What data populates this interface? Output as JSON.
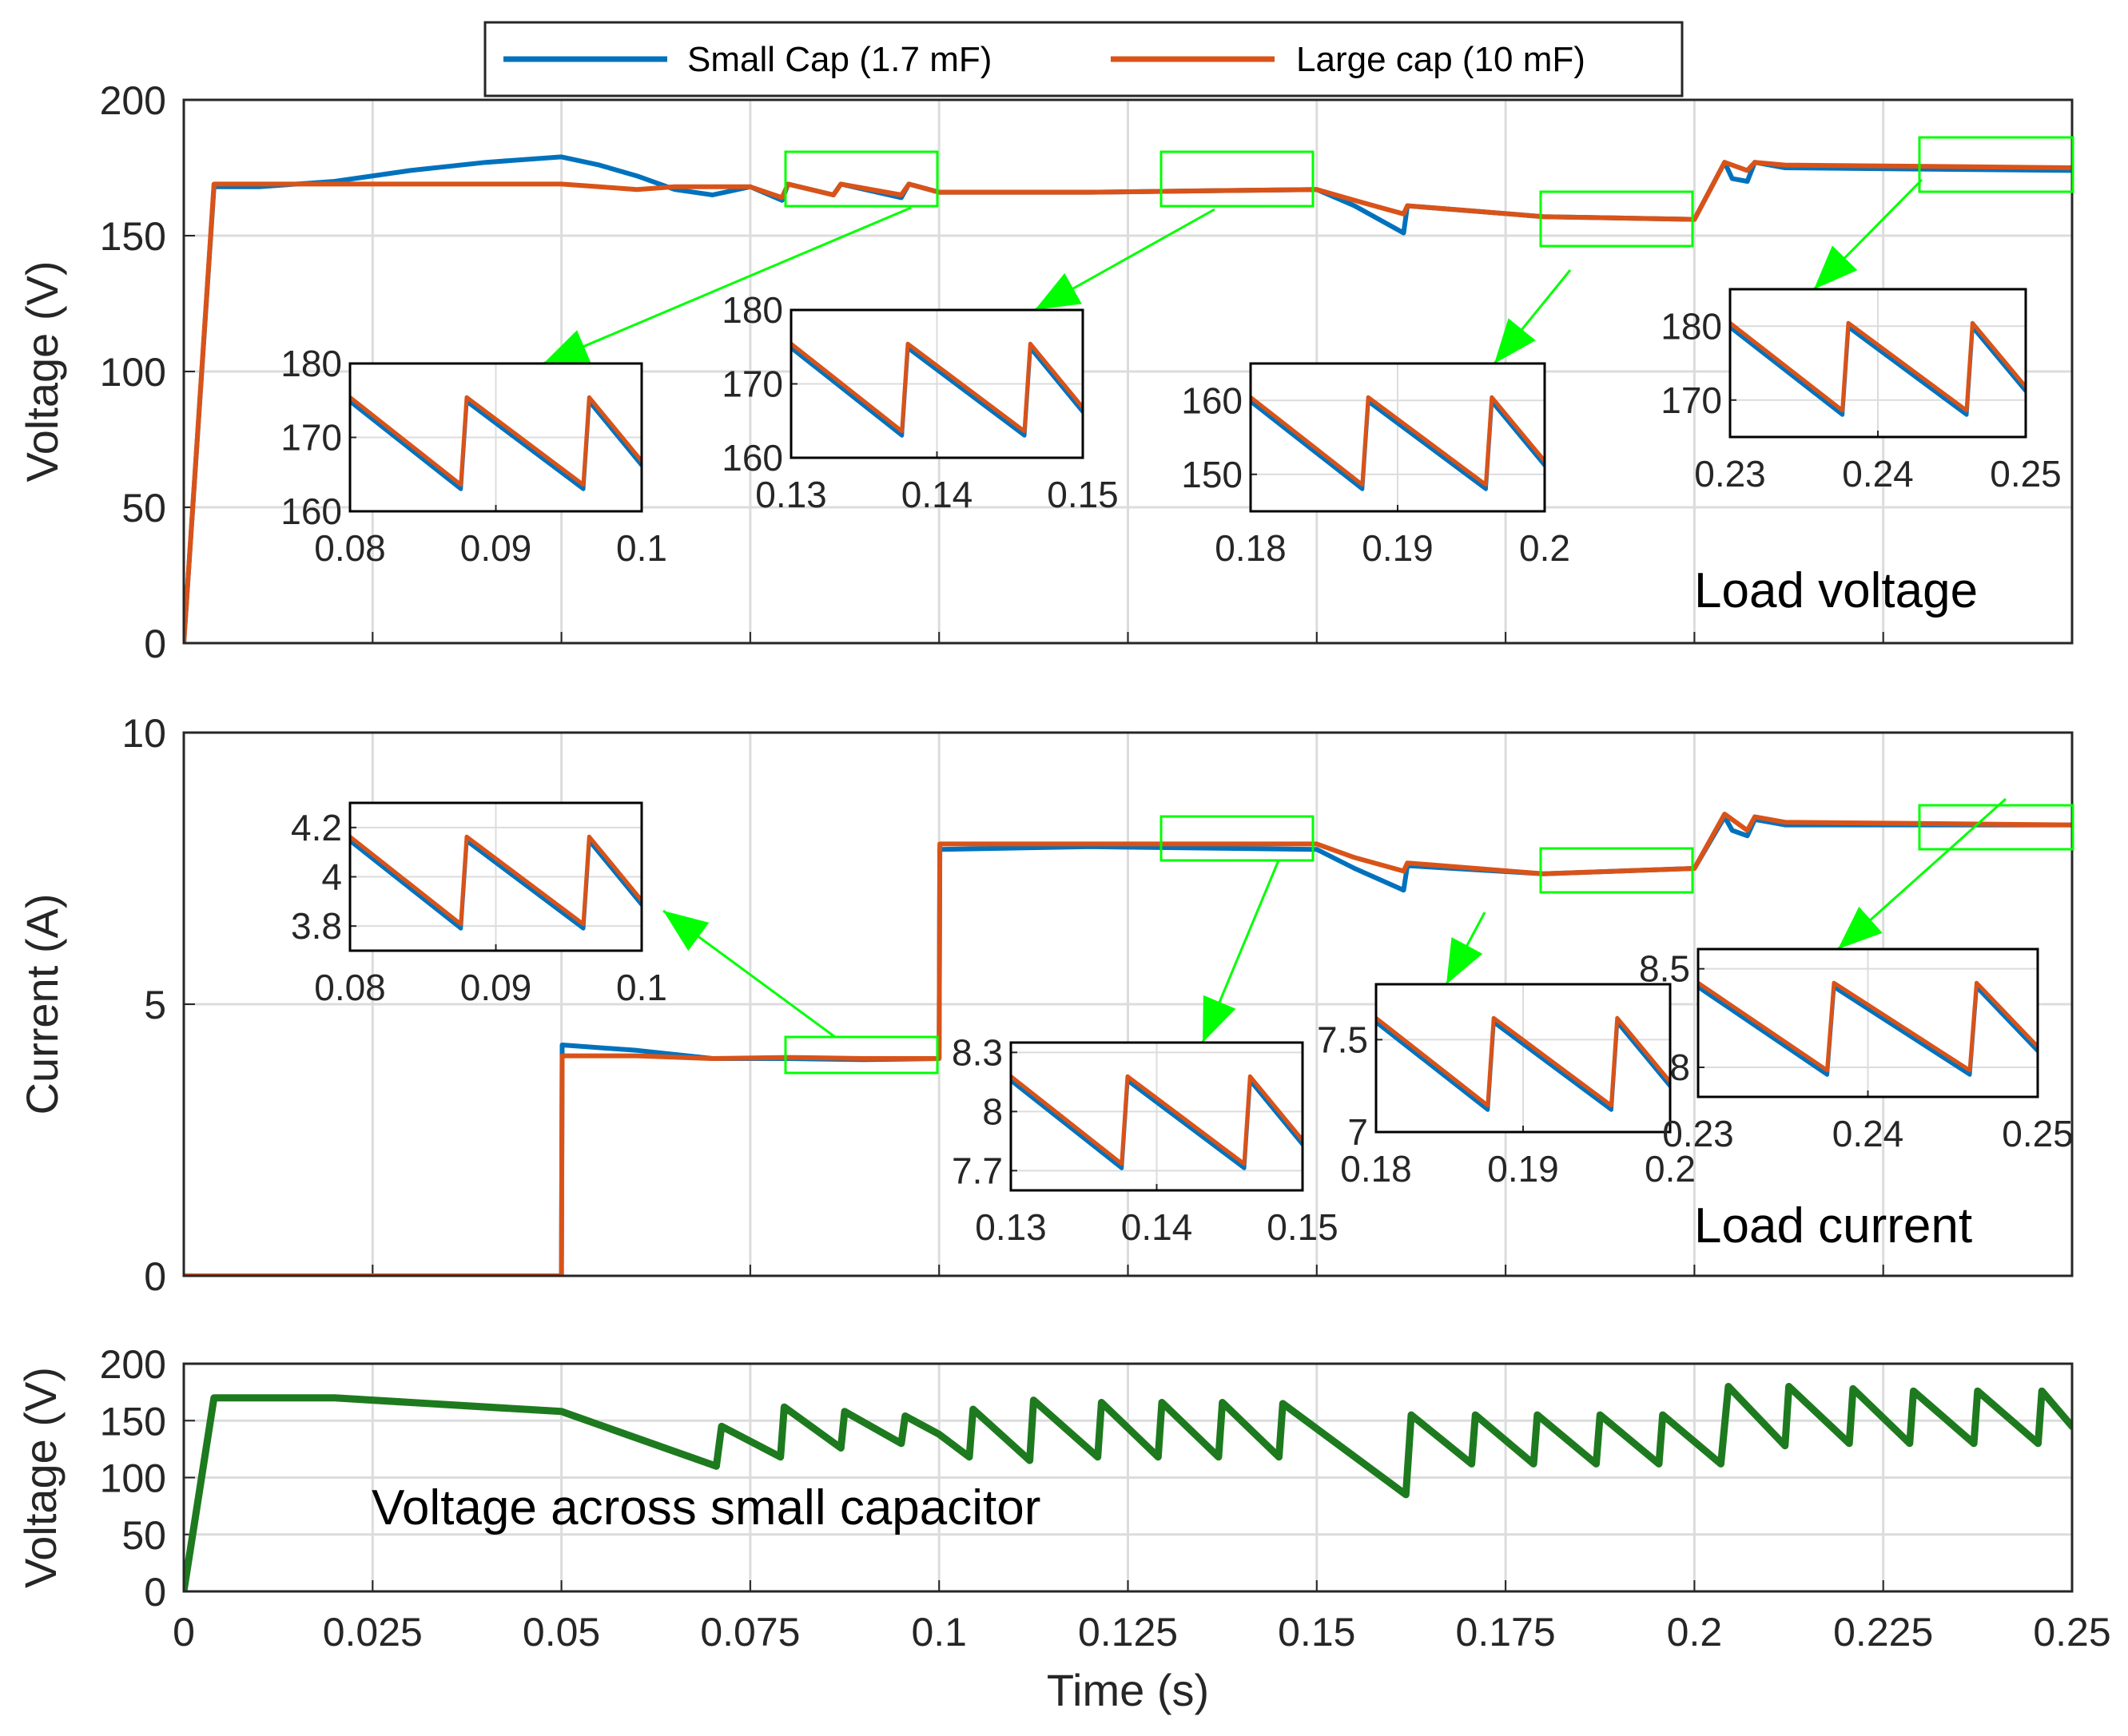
{
  "colors": {
    "small_cap": "#0072BD",
    "large_cap": "#D95319",
    "cap_voltage": "#1E7A1E",
    "zoom_box": "#00FF00",
    "grid": "#DCDCDC",
    "axis": "#262626"
  },
  "chart_data": [
    {
      "type": "line",
      "id": "load_voltage",
      "title": "",
      "annotation": "Load voltage",
      "xlabel": "",
      "ylabel": "Voltage (V)",
      "xlim": [
        0,
        0.25
      ],
      "ylim": [
        0,
        200
      ],
      "xticks": [
        "0",
        "0.025",
        "0.05",
        "0.075",
        "0.1",
        "0.125",
        "0.15",
        "0.175",
        "0.2",
        "0.225",
        "0.25"
      ],
      "yticks": [
        "0",
        "50",
        "100",
        "150",
        "200"
      ],
      "legend": {
        "placement": "top-center",
        "entries": [
          "Small Cap (1.7 mF)",
          "Large cap (10 mF)"
        ]
      },
      "series": [
        {
          "name": "Small Cap (1.7 mF)",
          "x": [
            0,
            0.004,
            0.01,
            0.02,
            0.03,
            0.04,
            0.05,
            0.055,
            0.06,
            0.065,
            0.07,
            0.075,
            0.0792,
            0.08,
            0.086,
            0.087,
            0.095,
            0.096,
            0.1,
            0.12,
            0.15,
            0.155,
            0.1615,
            0.162,
            0.18,
            0.2,
            0.204,
            0.205,
            0.207,
            0.208,
            0.212,
            0.25
          ],
          "values": [
            0,
            168,
            168,
            170,
            174,
            177,
            179,
            176,
            172,
            167,
            165,
            168,
            163,
            169,
            165,
            169,
            164,
            169,
            166,
            166,
            167,
            161,
            151,
            161,
            157,
            156,
            177,
            171,
            170,
            177,
            175,
            174
          ]
        },
        {
          "name": "Large cap (10 mF)",
          "x": [
            0,
            0.004,
            0.01,
            0.02,
            0.03,
            0.04,
            0.05,
            0.055,
            0.06,
            0.065,
            0.07,
            0.075,
            0.0792,
            0.08,
            0.086,
            0.087,
            0.095,
            0.096,
            0.1,
            0.12,
            0.15,
            0.155,
            0.1615,
            0.162,
            0.18,
            0.2,
            0.204,
            0.205,
            0.207,
            0.208,
            0.212,
            0.25
          ],
          "values": [
            0,
            169,
            169,
            169,
            169,
            169,
            169,
            168,
            167,
            168,
            168,
            168,
            164,
            169,
            165,
            169,
            165,
            169,
            166,
            166,
            167,
            163,
            158,
            161,
            157,
            156,
            177,
            176,
            174,
            177,
            176,
            175
          ]
        }
      ],
      "insets": [
        {
          "xlim": [
            0.08,
            0.1
          ],
          "ylim": [
            160,
            180
          ],
          "xticks": [
            "0.08",
            "0.09",
            "0.1"
          ],
          "yticks": [
            "160",
            "170",
            "180"
          ]
        },
        {
          "xlim": [
            0.13,
            0.15
          ],
          "ylim": [
            160,
            180
          ],
          "xticks": [
            "0.13",
            "0.14",
            "0.15"
          ],
          "yticks": [
            "160",
            "170",
            "180"
          ]
        },
        {
          "xlim": [
            0.18,
            0.2
          ],
          "ylim": [
            145,
            165
          ],
          "xticks": [
            "0.18",
            "0.19",
            "0.2"
          ],
          "yticks": [
            "150",
            "160"
          ]
        },
        {
          "xlim": [
            0.23,
            0.25
          ],
          "ylim": [
            165,
            185
          ],
          "xticks": [
            "0.23",
            "0.24",
            "0.25"
          ],
          "yticks": [
            "170",
            "180"
          ]
        }
      ]
    },
    {
      "type": "line",
      "id": "load_current",
      "title": "",
      "annotation": "Load current",
      "xlabel": "",
      "ylabel": "Current (A)",
      "xlim": [
        0,
        0.25
      ],
      "ylim": [
        0,
        10
      ],
      "xticks": [
        "0",
        "0.025",
        "0.05",
        "0.075",
        "0.1",
        "0.125",
        "0.15",
        "0.175",
        "0.2",
        "0.225",
        "0.25"
      ],
      "yticks": [
        "0",
        "5",
        "10"
      ],
      "series": [
        {
          "name": "Small Cap (1.7 mF)",
          "x": [
            0,
            0.05,
            0.0501,
            0.06,
            0.07,
            0.08,
            0.09,
            0.1,
            0.1001,
            0.12,
            0.15,
            0.155,
            0.1615,
            0.162,
            0.18,
            0.2,
            0.204,
            0.205,
            0.207,
            0.208,
            0.212,
            0.25
          ],
          "values": [
            0,
            0,
            4.25,
            4.15,
            4.0,
            4.0,
            3.98,
            4.0,
            7.85,
            7.9,
            7.85,
            7.5,
            7.1,
            7.55,
            7.4,
            7.5,
            8.45,
            8.2,
            8.1,
            8.4,
            8.3,
            8.3
          ]
        },
        {
          "name": "Large cap (10 mF)",
          "x": [
            0,
            0.05,
            0.0501,
            0.06,
            0.07,
            0.08,
            0.09,
            0.1,
            0.1001,
            0.12,
            0.15,
            0.155,
            0.1615,
            0.162,
            0.18,
            0.2,
            0.204,
            0.205,
            0.207,
            0.208,
            0.212,
            0.25
          ],
          "values": [
            0,
            0,
            4.05,
            4.05,
            4.0,
            4.02,
            4.0,
            4.0,
            7.95,
            7.95,
            7.95,
            7.7,
            7.45,
            7.6,
            7.4,
            7.5,
            8.5,
            8.4,
            8.2,
            8.45,
            8.35,
            8.3
          ]
        }
      ],
      "insets": [
        {
          "xlim": [
            0.08,
            0.1
          ],
          "ylim": [
            3.7,
            4.3
          ],
          "xticks": [
            "0.08",
            "0.09",
            "0.1"
          ],
          "yticks": [
            "3.8",
            "4",
            "4.2"
          ]
        },
        {
          "xlim": [
            0.13,
            0.15
          ],
          "ylim": [
            7.6,
            8.35
          ],
          "xticks": [
            "0.13",
            "0.14",
            "0.15"
          ],
          "yticks": [
            "7.7",
            "8",
            "8.3"
          ]
        },
        {
          "xlim": [
            0.18,
            0.2
          ],
          "ylim": [
            7.0,
            7.8
          ],
          "xticks": [
            "0.18",
            "0.19",
            "0.2"
          ],
          "yticks": [
            "7",
            "7.5"
          ]
        },
        {
          "xlim": [
            0.23,
            0.25
          ],
          "ylim": [
            7.85,
            8.6
          ],
          "xticks": [
            "0.23",
            "0.24",
            "0.25"
          ],
          "yticks": [
            "8",
            "8.5"
          ]
        }
      ]
    },
    {
      "type": "line",
      "id": "small_cap_voltage",
      "title": "",
      "annotation": "Voltage across small capacitor",
      "xlabel": "Time (s)",
      "ylabel": "Voltage (V)",
      "xlim": [
        0,
        0.25
      ],
      "ylim": [
        0,
        200
      ],
      "xticks": [
        "0",
        "0.025",
        "0.05",
        "0.075",
        "0.1",
        "0.125",
        "0.15",
        "0.175",
        "0.2",
        "0.225",
        "0.25"
      ],
      "yticks": [
        "0",
        "50",
        "100",
        "150",
        "200"
      ],
      "series": [
        {
          "name": "Small cap voltage",
          "x": [
            0,
            0.004,
            0.02,
            0.05,
            0.0705,
            0.0712,
            0.079,
            0.0795,
            0.087,
            0.0875,
            0.095,
            0.0955,
            0.1,
            0.104,
            0.1045,
            0.112,
            0.1125,
            0.121,
            0.1215,
            0.129,
            0.1295,
            0.137,
            0.1375,
            0.145,
            0.1455,
            0.1618,
            0.1625,
            0.1705,
            0.171,
            0.1787,
            0.1792,
            0.187,
            0.1875,
            0.1953,
            0.1958,
            0.2035,
            0.2045,
            0.212,
            0.2125,
            0.2205,
            0.221,
            0.2285,
            0.229,
            0.237,
            0.2375,
            0.2455,
            0.246,
            0.25
          ],
          "values": [
            0,
            170,
            170,
            158,
            110,
            145,
            118,
            162,
            126,
            158,
            130,
            154,
            138,
            118,
            160,
            115,
            168,
            118,
            166,
            118,
            166,
            118,
            166,
            118,
            165,
            85,
            155,
            112,
            155,
            112,
            155,
            112,
            155,
            112,
            155,
            112,
            180,
            128,
            180,
            130,
            178,
            130,
            176,
            130,
            176,
            130,
            176,
            145
          ]
        }
      ]
    }
  ]
}
